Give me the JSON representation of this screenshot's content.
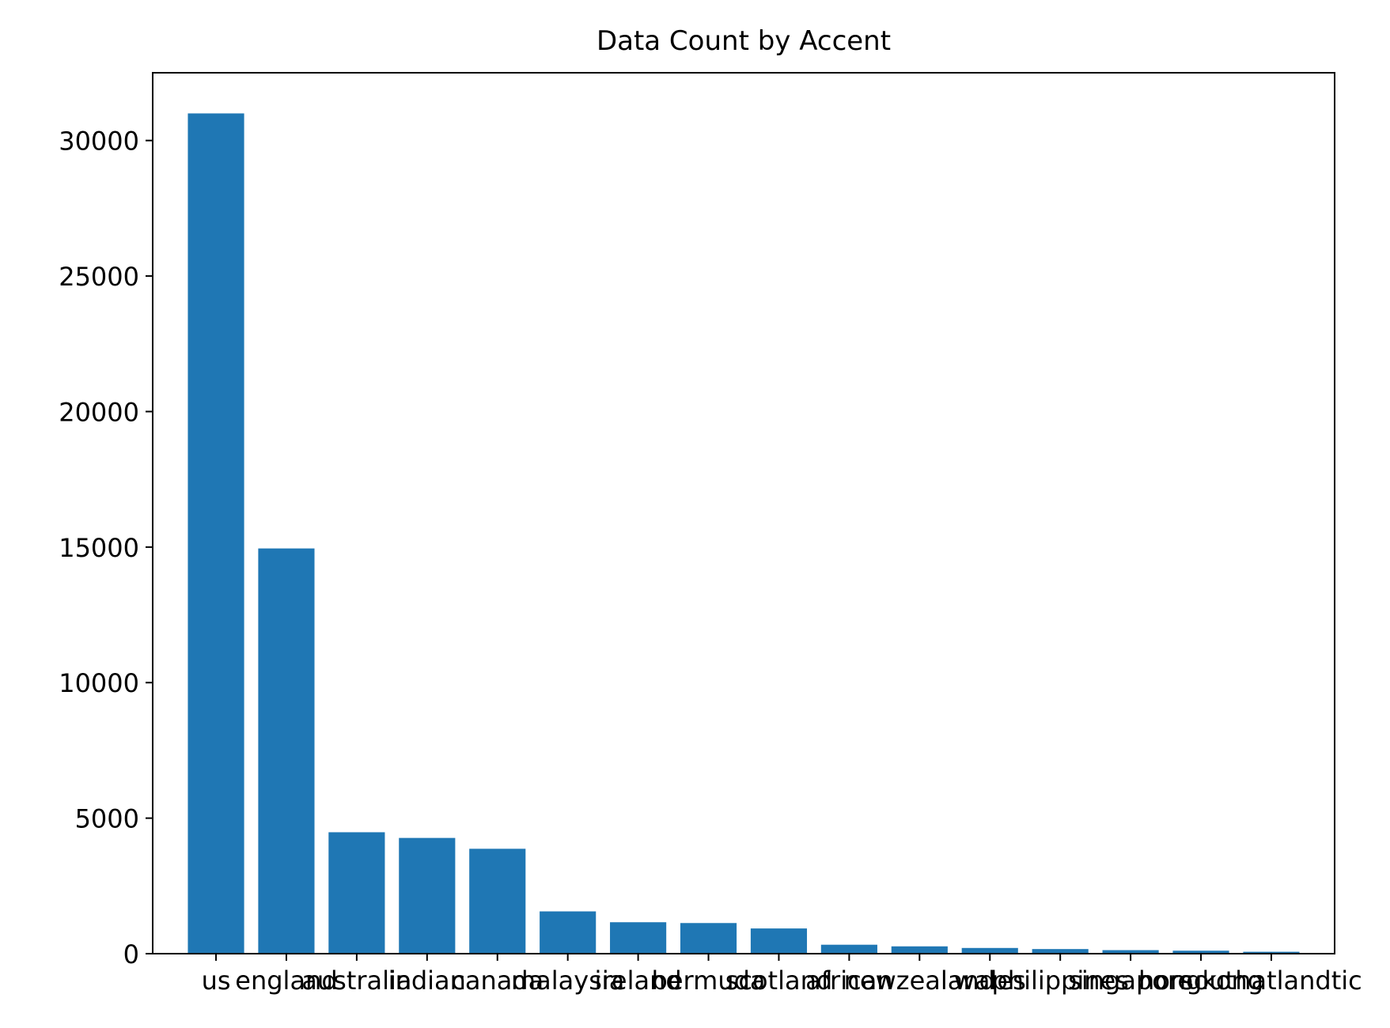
{
  "chart_data": {
    "type": "bar",
    "title": "Data Count by Accent",
    "xlabel": "",
    "ylabel": "",
    "categories": [
      "us",
      "england",
      "australia",
      "indian",
      "canada",
      "malaysia",
      "ireland",
      "bermuda",
      "scotland",
      "african",
      "newzealand",
      "wales",
      "philippines",
      "singapore",
      "hongkong",
      "southatlandtic"
    ],
    "values": [
      31000,
      14950,
      4480,
      4270,
      3870,
      1560,
      1160,
      1130,
      930,
      330,
      270,
      210,
      170,
      130,
      110,
      70
    ],
    "ylim": [
      0,
      32500
    ],
    "yticks": [
      0,
      5000,
      10000,
      15000,
      20000,
      25000,
      30000
    ],
    "ytick_labels": [
      "0",
      "5000",
      "10000",
      "15000",
      "20000",
      "25000",
      "30000"
    ],
    "bar_color": "#1f77b4",
    "grid": false,
    "legend": "none"
  }
}
